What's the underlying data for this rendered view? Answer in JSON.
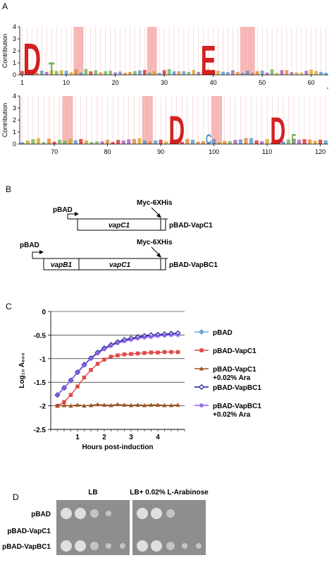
{
  "figure": {
    "panels": {
      "A": {
        "label": "A",
        "ylabel": "Contribution",
        "yticks": [
          "4",
          "3",
          "2",
          "1",
          "0"
        ],
        "rows": [
          {
            "xticks": [
              "1",
              "10",
              "20",
              "30",
              "40",
              "50",
              "60"
            ],
            "xtick_positions": [
              1,
              10,
              20,
              30,
              40,
              50,
              60
            ],
            "x_range": [
              1,
              63
            ],
            "highlight_ranges": [
              [
                12,
                13
              ],
              [
                27,
                28
              ],
              [
                46,
                48
              ]
            ],
            "big_letters": [
              {
                "pos": 3,
                "letter": "D",
                "height": 2.8,
                "color": "#d42020"
              },
              {
                "pos": 7,
                "letter": "T",
                "height": 1.1,
                "color": "#6ab04c"
              },
              {
                "pos": 39,
                "letter": "E",
                "height": 2.6,
                "color": "#d42020"
              }
            ],
            "corner_note": "#"
          },
          {
            "xticks": [
              "70",
              "80",
              "90",
              "100",
              "110",
              "120"
            ],
            "xtick_positions": [
              70,
              80,
              90,
              100,
              110,
              120
            ],
            "x_range": [
              64,
              121
            ],
            "highlight_ranges": [
              [
                72,
                73
              ],
              [
                87,
                88
              ],
              [
                100,
                101
              ]
            ],
            "big_letters": [
              {
                "pos": 93,
                "letter": "D",
                "height": 2.5,
                "color": "#d42020"
              },
              {
                "pos": 99,
                "letter": "C",
                "height": 0.9,
                "color": "#4a90c8"
              },
              {
                "pos": 112,
                "letter": "D",
                "height": 2.4,
                "color": "#d42020"
              },
              {
                "pos": 115,
                "letter": "F",
                "height": 0.9,
                "color": "#6ab04c"
              }
            ]
          }
        ]
      },
      "B": {
        "label": "B",
        "construct1": {
          "promoter": "pBAD",
          "tag": "Myc-6XHis",
          "gene": "vapC1",
          "name": "pBAD-VapC1"
        },
        "construct2": {
          "promoter": "pBAD",
          "tag": "Myc-6XHis",
          "gene1": "vapB1",
          "gene2": "vapC1",
          "name": "pBAD-VapBC1"
        }
      },
      "C": {
        "label": "C",
        "chart_data": {
          "type": "line",
          "xlabel": "Hours post-induction",
          "ylabel": "Log₁₀ A₆₀₀",
          "ylim": [
            -2.5,
            0
          ],
          "yticks": [
            "0",
            "-0.5",
            "-1",
            "-1.5",
            "-2",
            "-2.5"
          ],
          "ytick_values": [
            0,
            -0.5,
            -1,
            -1.5,
            -2,
            -2.5
          ],
          "xlim": [
            0,
            5
          ],
          "xticks": [
            "1",
            "2",
            "3",
            "4"
          ],
          "xtick_values": [
            1,
            2,
            3,
            4
          ],
          "grid": true,
          "x": [
            0.25,
            0.5,
            0.75,
            1.0,
            1.25,
            1.5,
            1.75,
            2.0,
            2.25,
            2.5,
            2.75,
            3.0,
            3.25,
            3.5,
            3.75,
            4.0,
            4.25,
            4.5,
            4.75
          ],
          "series": [
            {
              "name": "pBAD",
              "color": "#66a8e0",
              "marker": "diamond",
              "values": [
                -1.77,
                -1.62,
                -1.46,
                -1.29,
                -1.13,
                -0.99,
                -0.87,
                -0.78,
                -0.71,
                -0.65,
                -0.61,
                -0.58,
                -0.55,
                -0.53,
                -0.51,
                -0.5,
                -0.49,
                -0.48,
                -0.47
              ]
            },
            {
              "name": "pBAD-VapC1",
              "color": "#e04848",
              "marker": "square",
              "values": [
                -2.0,
                -1.92,
                -1.77,
                -1.59,
                -1.4,
                -1.24,
                -1.11,
                -1.02,
                -0.96,
                -0.93,
                -0.91,
                -0.9,
                -0.89,
                -0.88,
                -0.87,
                -0.87,
                -0.86,
                -0.86,
                -0.86
              ]
            },
            {
              "name": "pBAD-VapC1 +0.02% Ara",
              "color": "#a0521d",
              "marker": "triangle",
              "values": [
                -2.0,
                -1.99,
                -2.0,
                -1.98,
                -2.0,
                -1.99,
                -1.97,
                -1.98,
                -1.99,
                -1.97,
                -1.98,
                -1.99,
                -1.98,
                -1.99,
                -1.98,
                -1.98,
                -1.99,
                -1.99,
                -1.98
              ]
            },
            {
              "name": "pBAD-VapBC1",
              "color": "#1c1c8c",
              "marker": "open-diamond",
              "values": [
                -1.77,
                -1.62,
                -1.46,
                -1.29,
                -1.13,
                -0.99,
                -0.87,
                -0.78,
                -0.71,
                -0.65,
                -0.6,
                -0.57,
                -0.54,
                -0.52,
                -0.5,
                -0.49,
                -0.48,
                -0.47,
                -0.46
              ]
            },
            {
              "name": "pBAD-VapBC1 +0.02% Ara",
              "color": "#8a5ae8",
              "marker": "star",
              "values": [
                -1.77,
                -1.62,
                -1.46,
                -1.3,
                -1.14,
                -1.0,
                -0.89,
                -0.8,
                -0.73,
                -0.67,
                -0.63,
                -0.6,
                -0.57,
                -0.55,
                -0.54,
                -0.52,
                -0.51,
                -0.5,
                -0.5
              ]
            }
          ],
          "legend": [
            {
              "line1": "pBAD",
              "line2": ""
            },
            {
              "line1": "pBAD-VapC1",
              "line2": ""
            },
            {
              "line1": "pBAD-VapC1",
              "line2": "+0.02% Ara"
            },
            {
              "line1": "pBAD-VapBC1",
              "line2": ""
            },
            {
              "line1": "pBAD-VapBC1",
              "line2": "+0.02% Ara"
            }
          ],
          "legend_placement": "right"
        }
      },
      "D": {
        "label": "D",
        "col_labels": [
          "LB",
          "LB+ 0.02% L-Arabinose"
        ],
        "row_labels": [
          "pBAD",
          "pBAD-VapC1",
          "pBAD-VapBC1"
        ],
        "plate_color": "#8e8e8e",
        "colony_color": "#e8e8e8"
      }
    }
  }
}
